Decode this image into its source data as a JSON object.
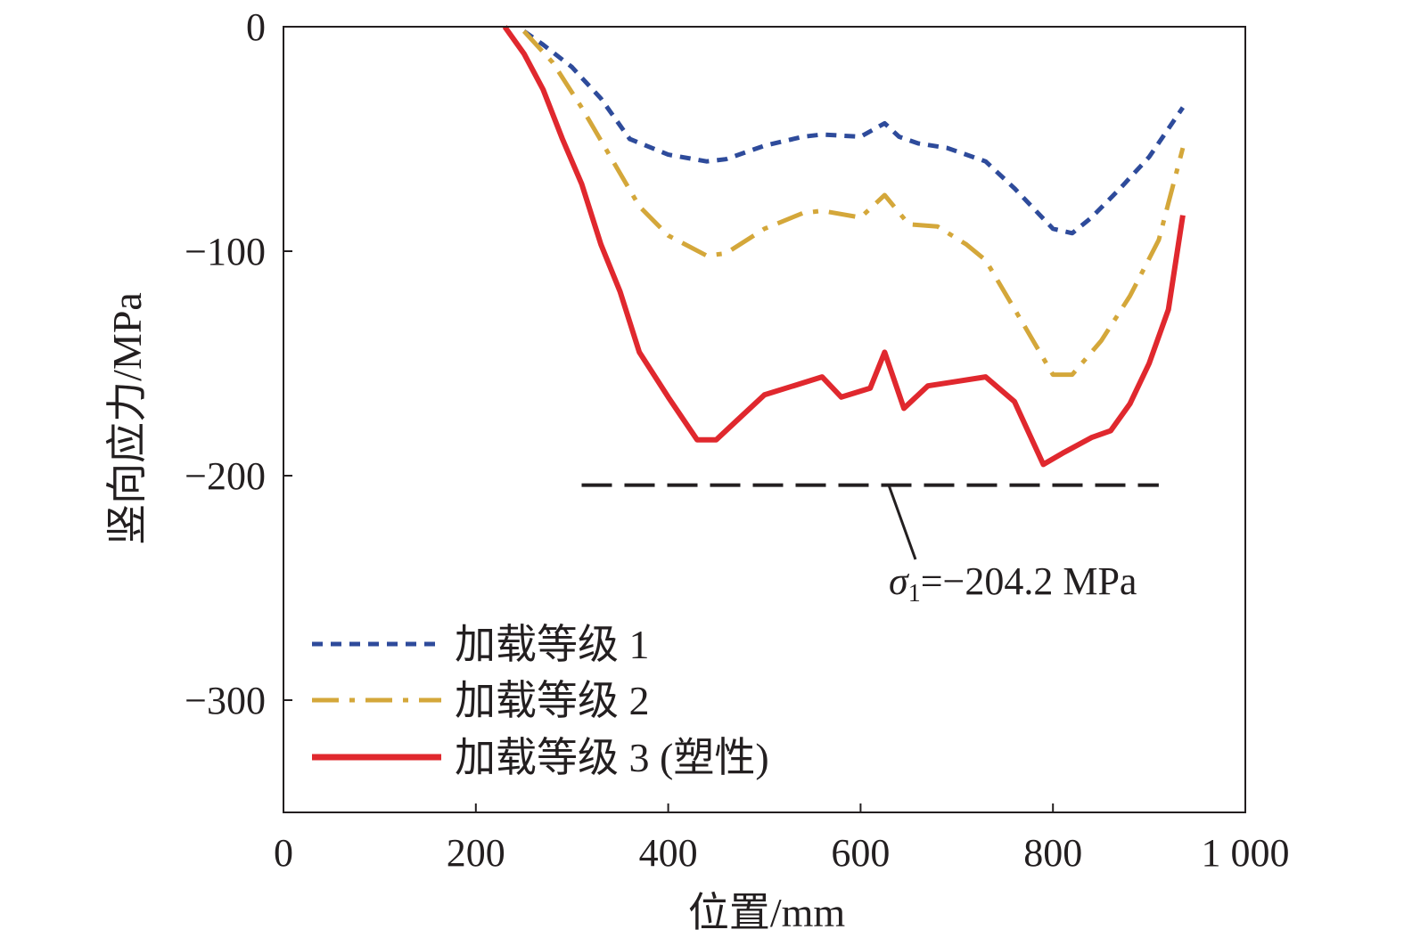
{
  "chart_data": {
    "type": "line",
    "xlabel": "位置/mm",
    "ylabel": "竖向应力/MPa",
    "xlim": [
      0,
      1000
    ],
    "ylim": [
      -350,
      0
    ],
    "xticks": [
      0,
      200,
      400,
      600,
      800,
      1000
    ],
    "xtick_labels": [
      "0",
      "200",
      "400",
      "600",
      "800",
      "1 000"
    ],
    "yticks": [
      0,
      -100,
      -200,
      -300
    ],
    "ytick_labels": [
      "0",
      "−100",
      "−200",
      "−300"
    ],
    "grid": false,
    "legend_position": "bottom-left",
    "series": [
      {
        "name": "加载等级 1",
        "color": "#2e4b9b",
        "style": "dashed",
        "x": [
          250,
          270,
          300,
          330,
          360,
          400,
          440,
          460,
          500,
          540,
          560,
          600,
          625,
          640,
          660,
          690,
          730,
          760,
          800,
          820,
          840,
          870,
          900,
          935
        ],
        "y": [
          -2,
          -8,
          -18,
          -32,
          -50,
          -57,
          -60,
          -59,
          -53,
          -49,
          -48,
          -49,
          -43,
          -49,
          -52,
          -54,
          -60,
          -72,
          -90,
          -92,
          -85,
          -72,
          -58,
          -36
        ]
      },
      {
        "name": "加载等级 2",
        "color": "#d4a73a",
        "style": "dashdot",
        "x": [
          250,
          280,
          310,
          340,
          370,
          400,
          440,
          460,
          500,
          540,
          560,
          600,
          625,
          650,
          680,
          710,
          730,
          770,
          800,
          820,
          850,
          880,
          910,
          935
        ],
        "y": [
          -2,
          -16,
          -36,
          -58,
          -80,
          -93,
          -102,
          -101,
          -90,
          -83,
          -82,
          -85,
          -75,
          -88,
          -89,
          -97,
          -104,
          -133,
          -155,
          -155,
          -140,
          -120,
          -95,
          -54
        ]
      },
      {
        "name": "加载等级 3 (塑性)",
        "color": "#e0282e",
        "style": "solid",
        "x": [
          230,
          250,
          270,
          290,
          310,
          330,
          350,
          370,
          400,
          430,
          450,
          470,
          500,
          530,
          560,
          580,
          610,
          625,
          645,
          670,
          700,
          730,
          760,
          790,
          810,
          840,
          860,
          880,
          900,
          920,
          935
        ],
        "y": [
          0,
          -12,
          -28,
          -50,
          -70,
          -97,
          -118,
          -145,
          -165,
          -184,
          -184,
          -176,
          -164,
          -160,
          -156,
          -165,
          -161,
          -145,
          -170,
          -160,
          -158,
          -156,
          -167,
          -195,
          -190,
          -183,
          -180,
          -168,
          -150,
          -126,
          -84
        ]
      }
    ],
    "annotations": [
      {
        "type": "reference_line",
        "y": -204.2,
        "x_range": [
          310,
          910
        ],
        "color": "#231f20",
        "style": "dashed",
        "label_symbol": "σ",
        "label_subscript": "1",
        "label_value": "=−204.2 MPa"
      }
    ]
  }
}
